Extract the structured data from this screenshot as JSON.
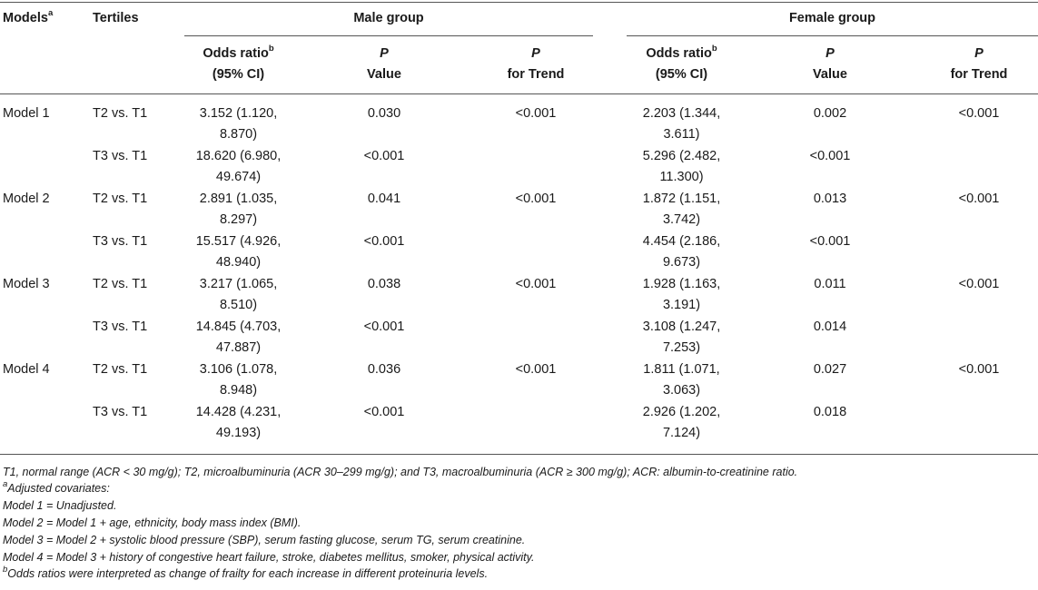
{
  "table": {
    "col_models": "Models",
    "col_models_sup": "a",
    "col_tertiles": "Tertiles",
    "group_male": "Male group",
    "group_female": "Female group",
    "sub_or_line1": "Odds ratio",
    "sub_or_sup": "b",
    "sub_or_line2": "(95% CI)",
    "sub_p_line1": "P",
    "sub_p_line2": "Value",
    "sub_trend_line1": "P",
    "sub_trend_line2": "for Trend",
    "rows": [
      {
        "model": "Model 1",
        "tertile": "T2 vs. T1",
        "m_or1": "3.152 (1.120,",
        "m_or2": "8.870)",
        "m_p": "0.030",
        "m_trend": "<0.001",
        "f_or1": "2.203 (1.344,",
        "f_or2": "3.611)",
        "f_p": "0.002",
        "f_trend": "<0.001"
      },
      {
        "model": "",
        "tertile": "T3 vs. T1",
        "m_or1": "18.620 (6.980,",
        "m_or2": "49.674)",
        "m_p": "<0.001",
        "m_trend": "",
        "f_or1": "5.296 (2.482,",
        "f_or2": "11.300)",
        "f_p": "<0.001",
        "f_trend": ""
      },
      {
        "model": "Model 2",
        "tertile": "T2 vs. T1",
        "m_or1": "2.891 (1.035,",
        "m_or2": "8.297)",
        "m_p": "0.041",
        "m_trend": "<0.001",
        "f_or1": "1.872 (1.151,",
        "f_or2": "3.742)",
        "f_p": "0.013",
        "f_trend": "<0.001"
      },
      {
        "model": "",
        "tertile": "T3 vs. T1",
        "m_or1": "15.517 (4.926,",
        "m_or2": "48.940)",
        "m_p": "<0.001",
        "m_trend": "",
        "f_or1": "4.454 (2.186,",
        "f_or2": "9.673)",
        "f_p": "<0.001",
        "f_trend": ""
      },
      {
        "model": "Model 3",
        "tertile": "T2 vs. T1",
        "m_or1": "3.217 (1.065,",
        "m_or2": "8.510)",
        "m_p": "0.038",
        "m_trend": "<0.001",
        "f_or1": "1.928 (1.163,",
        "f_or2": "3.191)",
        "f_p": "0.011",
        "f_trend": "<0.001"
      },
      {
        "model": "",
        "tertile": "T3 vs. T1",
        "m_or1": "14.845 (4.703,",
        "m_or2": "47.887)",
        "m_p": "<0.001",
        "m_trend": "",
        "f_or1": "3.108 (1.247,",
        "f_or2": "7.253)",
        "f_p": "0.014",
        "f_trend": ""
      },
      {
        "model": "Model 4",
        "tertile": "T2 vs. T1",
        "m_or1": "3.106 (1.078,",
        "m_or2": "8.948)",
        "m_p": "0.036",
        "m_trend": "<0.001",
        "f_or1": "1.811 (1.071,",
        "f_or2": "3.063)",
        "f_p": "0.027",
        "f_trend": "<0.001"
      },
      {
        "model": "",
        "tertile": "T3 vs. T1",
        "m_or1": "14.428 (4.231,",
        "m_or2": "49.193)",
        "m_p": "<0.001",
        "m_trend": "",
        "f_or1": "2.926 (1.202,",
        "f_or2": "7.124)",
        "f_p": "0.018",
        "f_trend": ""
      }
    ]
  },
  "footnotes": {
    "definitions": "T1, normal range (ACR < 30 mg/g); T2, microalbuminuria (ACR 30–299 mg/g); and T3, macroalbuminuria (ACR ≥ 300 mg/g); ACR: albumin-to-creatinine ratio.",
    "sup_a": "a",
    "adjusted": "Adjusted covariates:",
    "model1": "Model 1 = Unadjusted.",
    "model2": "Model 2 = Model 1 + age, ethnicity, body mass index (BMI).",
    "model3": "Model 3 = Model 2 + systolic blood pressure (SBP), serum fasting glucose, serum TG, serum creatinine.",
    "model4": "Model 4 = Model 3 + history of congestive heart failure, stroke, diabetes mellitus, smoker, physical activity.",
    "sup_b": "b",
    "odds_note": "Odds ratios were interpreted as change of frailty for each increase in different proteinuria levels."
  }
}
